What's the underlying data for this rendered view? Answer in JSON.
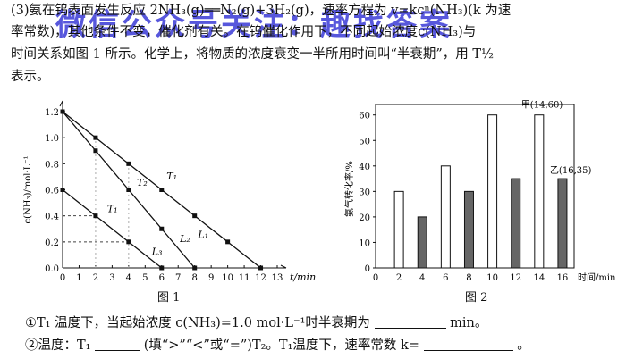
{
  "question": {
    "line1": "(3)氨在钨表面发生反应 2NH₃(g)══N₂(g)+3H₂(g)，速率方程为 v=kcⁿ(NH₃)(k 为速",
    "line2": "率常数)，其他条件不变，催化剂有关。在钨催化作用下，不同起始浓度c(NH₃)与",
    "line3": "时间关系如图 1 所示。化学上，将物质的浓度衰变一半所用时间叫“半衰期”，用 T½",
    "line4": "表示。",
    "sub1_prefix": "①T₁ 温度下，当起始浓度 c(NH₃)=1.0 mol·L⁻¹时半衰期为",
    "sub1_suffix": "min。",
    "sub2_prefix": "②温度：T₁",
    "sub2_mid": "(填“>”“<”或“=”)T₂。T₁温度下，速率常数 k=",
    "sub2_suffix": "。"
  },
  "watermark": {
    "text": "微信公众号关注：趣找答案",
    "color": "#2828d2"
  },
  "fig1": {
    "caption": "图 1",
    "ylabel": "c(NH₃)/mol·L⁻¹",
    "xlabel": "t/min",
    "x_ticks": [
      "0",
      "1",
      "2",
      "3",
      "4",
      "5",
      "6",
      "7",
      "8",
      "9",
      "10",
      "11",
      "12",
      "13"
    ],
    "y_ticks": [
      "0.0",
      "0.2",
      "0.4",
      "0.6",
      "0.8",
      "1.0",
      "1.2"
    ],
    "line_labels": {
      "T1_upper": "T₁",
      "T2": "T₂",
      "T1_lower": "T₁",
      "L1": "L₁",
      "L2": "L₂",
      "L3": "L₃"
    }
  },
  "fig2": {
    "caption": "图 2",
    "ylabel": "氨气转化率/%",
    "xlabel": "时间/min",
    "x_ticks": [
      "0",
      "2",
      "4",
      "6",
      "8",
      "10",
      "12",
      "14",
      "16"
    ],
    "y_ticks": [
      "0",
      "10",
      "20",
      "30",
      "40",
      "50",
      "60"
    ],
    "point_a_label": "甲(14,60)",
    "point_b_label": "乙(16,35)"
  },
  "chart_data": [
    {
      "type": "line",
      "xlabel": "t/min",
      "ylabel": "c(NH₃)/mol·L⁻¹",
      "xlim": [
        0,
        13
      ],
      "ylim": [
        0,
        1.2
      ],
      "grid": false,
      "series": [
        {
          "name": "L₁",
          "x": [
            0,
            2,
            4,
            6,
            8,
            10,
            12
          ],
          "y": [
            1.2,
            1.0,
            0.8,
            0.6,
            0.4,
            0.2,
            0.0
          ]
        },
        {
          "name": "L₂",
          "x": [
            0,
            2,
            4,
            6,
            8
          ],
          "y": [
            1.2,
            0.9,
            0.6,
            0.3,
            0.0
          ]
        },
        {
          "name": "L₃",
          "x": [
            0,
            2,
            4,
            6
          ],
          "y": [
            0.6,
            0.4,
            0.2,
            0.0
          ]
        }
      ]
    },
    {
      "type": "bar",
      "xlabel": "时间/min",
      "ylabel": "氨气转化率/%",
      "xlim": [
        0,
        17
      ],
      "ylim": [
        0,
        62
      ],
      "series": [
        {
          "x": [
            2,
            6,
            10,
            14
          ],
          "values": [
            30,
            40,
            60,
            60
          ],
          "fill": "white"
        },
        {
          "x": [
            4,
            8,
            12,
            16
          ],
          "values": [
            20,
            30,
            35,
            35
          ],
          "fill": "gray"
        }
      ]
    }
  ]
}
